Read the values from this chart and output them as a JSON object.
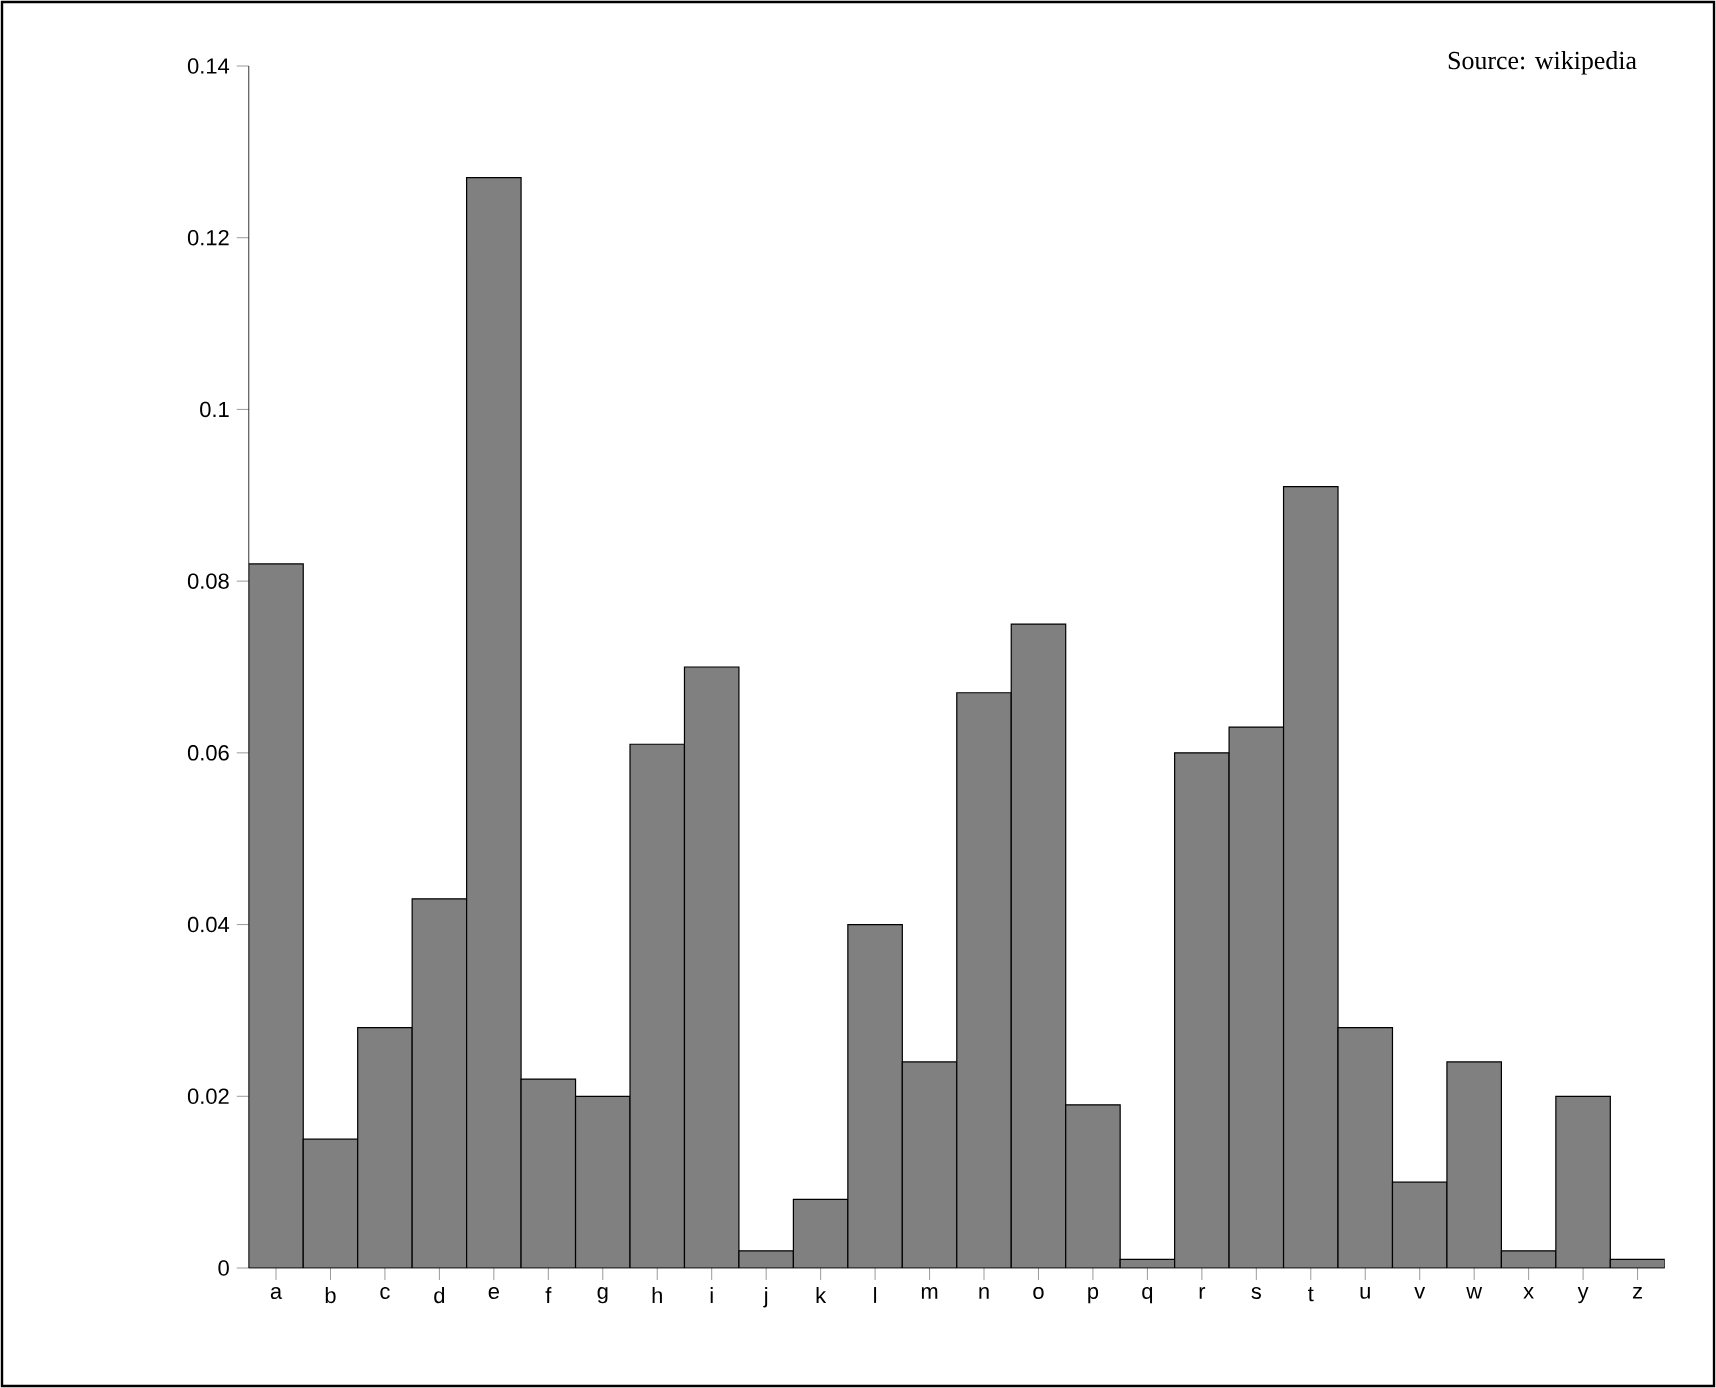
{
  "chart_data": {
    "type": "bar",
    "categories": [
      "a",
      "b",
      "c",
      "d",
      "e",
      "f",
      "g",
      "h",
      "i",
      "j",
      "k",
      "l",
      "m",
      "n",
      "o",
      "p",
      "q",
      "r",
      "s",
      "t",
      "u",
      "v",
      "w",
      "x",
      "y",
      "z"
    ],
    "values": [
      0.082,
      0.015,
      0.028,
      0.043,
      0.127,
      0.022,
      0.02,
      0.061,
      0.07,
      0.002,
      0.008,
      0.04,
      0.024,
      0.067,
      0.075,
      0.019,
      0.001,
      0.06,
      0.063,
      0.091,
      0.028,
      0.01,
      0.024,
      0.002,
      0.02,
      0.001
    ],
    "color": "#808080",
    "ylim": [
      0,
      0.14
    ],
    "yticks": [
      0,
      0.02,
      0.04,
      0.06,
      0.08,
      0.1,
      0.12,
      0.14
    ],
    "annotations": [
      "Source: wikipedia"
    ]
  }
}
